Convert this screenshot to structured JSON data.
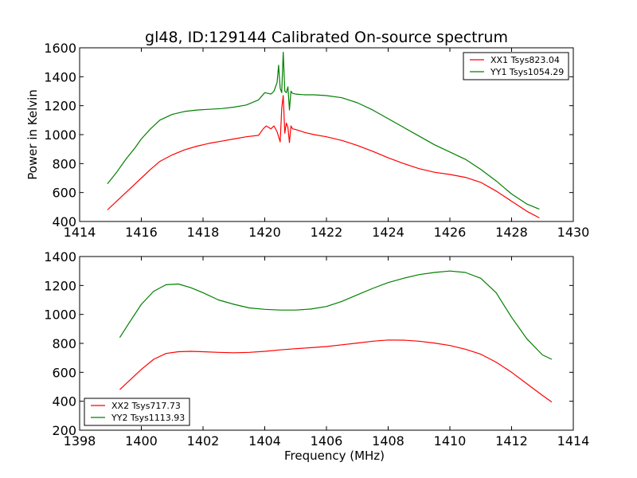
{
  "figure": {
    "title": "gl48, ID:129144 Calibrated On-source spectrum"
  },
  "chart_data": [
    {
      "type": "line",
      "title": "gl48, ID:129144 Calibrated On-source spectrum",
      "xlabel": "",
      "ylabel": "Power in Kelvin",
      "xlim": [
        1414,
        1430
      ],
      "ylim": [
        400,
        1600
      ],
      "xticks": [
        "1414",
        "1416",
        "1418",
        "1420",
        "1422",
        "1424",
        "1426",
        "1428",
        "1430"
      ],
      "yticks": [
        "400",
        "600",
        "800",
        "1000",
        "1200",
        "1400",
        "1600"
      ],
      "grid": false,
      "legend_position": "top-right",
      "series": [
        {
          "name": "XX1 Tsys823.04",
          "color": "#ff0000",
          "x": [
            1414.9,
            1415.2,
            1415.5,
            1415.8,
            1416.0,
            1416.3,
            1416.6,
            1417.0,
            1417.4,
            1417.8,
            1418.2,
            1418.6,
            1419.0,
            1419.4,
            1419.8,
            1419.95,
            1420.05,
            1420.2,
            1420.3,
            1420.4,
            1420.5,
            1420.55,
            1420.6,
            1420.65,
            1420.7,
            1420.75,
            1420.8,
            1420.85,
            1420.9,
            1421.0,
            1421.3,
            1421.6,
            1422.0,
            1422.5,
            1423.0,
            1423.5,
            1424.0,
            1424.5,
            1425.0,
            1425.5,
            1426.0,
            1426.5,
            1427.0,
            1427.5,
            1428.0,
            1428.5,
            1428.9
          ],
          "y": [
            480,
            540,
            600,
            660,
            700,
            760,
            815,
            860,
            895,
            920,
            940,
            955,
            970,
            985,
            995,
            1040,
            1060,
            1040,
            1060,
            1020,
            950,
            1180,
            1270,
            1010,
            1080,
            1050,
            945,
            1060,
            1040,
            1035,
            1015,
            1000,
            985,
            960,
            925,
            885,
            840,
            800,
            765,
            740,
            725,
            705,
            670,
            610,
            540,
            470,
            425
          ]
        },
        {
          "name": "YY1 Tsys1054.29",
          "color": "#008000",
          "x": [
            1414.9,
            1415.2,
            1415.5,
            1415.8,
            1416.0,
            1416.3,
            1416.6,
            1417.0,
            1417.4,
            1417.8,
            1418.2,
            1418.6,
            1419.0,
            1419.4,
            1419.8,
            1420.0,
            1420.2,
            1420.3,
            1420.4,
            1420.45,
            1420.5,
            1420.55,
            1420.6,
            1420.65,
            1420.7,
            1420.75,
            1420.8,
            1420.85,
            1420.9,
            1421.0,
            1421.3,
            1421.6,
            1422.0,
            1422.5,
            1423.0,
            1423.5,
            1424.0,
            1424.5,
            1425.0,
            1425.5,
            1426.0,
            1426.5,
            1427.0,
            1427.5,
            1428.0,
            1428.5,
            1428.9
          ],
          "y": [
            660,
            740,
            830,
            910,
            970,
            1040,
            1100,
            1140,
            1160,
            1170,
            1175,
            1180,
            1190,
            1205,
            1240,
            1290,
            1280,
            1300,
            1360,
            1480,
            1320,
            1290,
            1570,
            1300,
            1290,
            1330,
            1170,
            1300,
            1285,
            1280,
            1275,
            1275,
            1270,
            1255,
            1220,
            1170,
            1110,
            1050,
            990,
            930,
            880,
            830,
            760,
            680,
            590,
            520,
            485
          ]
        }
      ]
    },
    {
      "type": "line",
      "title": "",
      "xlabel": "Frequency (MHz)",
      "ylabel": "",
      "xlim": [
        1398,
        1414
      ],
      "ylim": [
        200,
        1400
      ],
      "xticks": [
        "1398",
        "1400",
        "1402",
        "1404",
        "1406",
        "1408",
        "1410",
        "1412",
        "1414"
      ],
      "yticks": [
        "200",
        "400",
        "600",
        "800",
        "1000",
        "1200",
        "1400"
      ],
      "grid": false,
      "legend_position": "bottom-left",
      "series": [
        {
          "name": "XX2 Tsys717.73",
          "color": "#ff0000",
          "x": [
            1399.3,
            1399.6,
            1400.0,
            1400.4,
            1400.8,
            1401.2,
            1401.6,
            1402.0,
            1402.5,
            1403.0,
            1403.5,
            1404.0,
            1404.5,
            1405.0,
            1405.5,
            1406.0,
            1406.5,
            1407.0,
            1407.5,
            1408.0,
            1408.5,
            1409.0,
            1409.5,
            1410.0,
            1410.5,
            1411.0,
            1411.5,
            1412.0,
            1412.5,
            1413.0,
            1413.3
          ],
          "y": [
            480,
            540,
            620,
            690,
            730,
            742,
            745,
            742,
            738,
            735,
            738,
            745,
            755,
            763,
            770,
            778,
            790,
            802,
            815,
            823,
            822,
            815,
            802,
            785,
            760,
            725,
            670,
            600,
            520,
            440,
            395
          ]
        },
        {
          "name": "YY2 Tsys1113.93",
          "color": "#008000",
          "x": [
            1399.3,
            1399.6,
            1400.0,
            1400.4,
            1400.8,
            1401.2,
            1401.6,
            1402.0,
            1402.5,
            1403.0,
            1403.5,
            1404.0,
            1404.5,
            1405.0,
            1405.5,
            1406.0,
            1406.5,
            1407.0,
            1407.5,
            1408.0,
            1408.5,
            1409.0,
            1409.5,
            1410.0,
            1410.5,
            1411.0,
            1411.5,
            1412.0,
            1412.5,
            1413.0,
            1413.3
          ],
          "y": [
            840,
            940,
            1070,
            1160,
            1205,
            1210,
            1185,
            1150,
            1100,
            1070,
            1045,
            1035,
            1030,
            1030,
            1037,
            1055,
            1090,
            1135,
            1180,
            1220,
            1250,
            1275,
            1290,
            1300,
            1290,
            1250,
            1150,
            980,
            830,
            720,
            690
          ]
        }
      ]
    }
  ]
}
